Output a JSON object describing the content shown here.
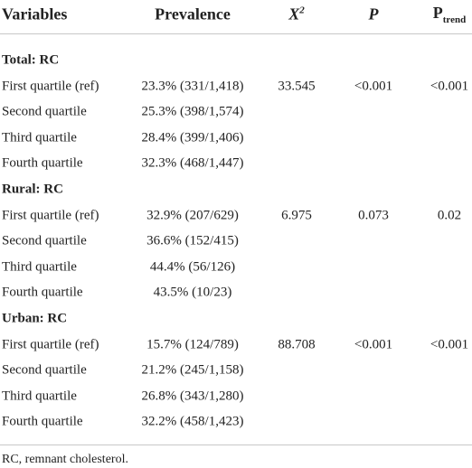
{
  "header": {
    "variables": "Variables",
    "prevalence": "Prevalence",
    "chi": {
      "base": "X",
      "sup": "2"
    },
    "p": "P",
    "ptrend": {
      "base": "P",
      "sub": "trend"
    }
  },
  "sections": [
    {
      "title": "Total: RC",
      "rows": [
        [
          "First quartile (ref)",
          "23.3% (331/1,418)",
          "33.545",
          "<0.001",
          "<0.001"
        ],
        [
          "Second quartile",
          "25.3% (398/1,574)"
        ],
        [
          "Third quartile",
          "28.4% (399/1,406)"
        ],
        [
          "Fourth quartile",
          "32.3% (468/1,447)"
        ]
      ]
    },
    {
      "title": "Rural: RC",
      "rows": [
        [
          "First quartile (ref)",
          "32.9% (207/629)",
          "6.975",
          "0.073",
          "0.02"
        ],
        [
          "Second quartile",
          "36.6% (152/415)"
        ],
        [
          "Third quartile",
          "44.4% (56/126)"
        ],
        [
          "Fourth quartile",
          "43.5% (10/23)"
        ]
      ]
    },
    {
      "title": "Urban: RC",
      "rows": [
        [
          "First quartile (ref)",
          "15.7% (124/789)",
          "88.708",
          "<0.001",
          "<0.001"
        ],
        [
          "Second quartile",
          "21.2% (245/1,158)"
        ],
        [
          "Third quartile",
          "26.8% (343/1,280)"
        ],
        [
          "Fourth quartile",
          "32.2% (458/1,423)"
        ]
      ]
    }
  ],
  "footnote": "RC, remnant cholesterol."
}
